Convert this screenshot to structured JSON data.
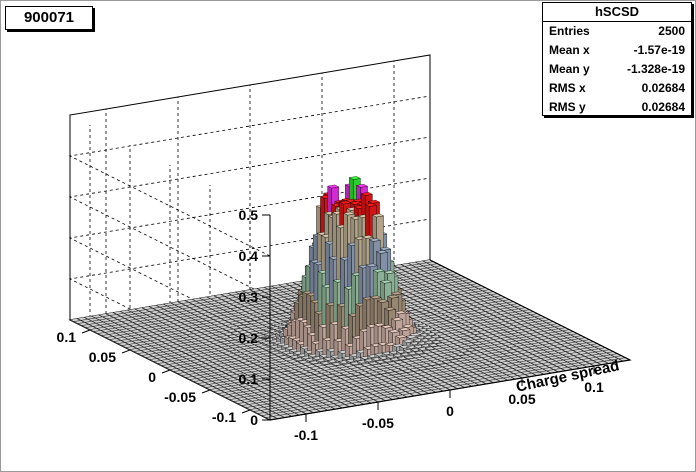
{
  "canvas": {
    "title": "900071"
  },
  "stats": {
    "name": "hSCSD",
    "rows": [
      {
        "label": "Entries",
        "value": "2500"
      },
      {
        "label": "Mean x",
        "value": "-1.57e-19"
      },
      {
        "label": "Mean y",
        "value": "-1.328e-19"
      },
      {
        "label": "RMS x",
        "value": "0.02684"
      },
      {
        "label": "RMS y",
        "value": "0.02684"
      }
    ]
  },
  "chart_data": {
    "type": "lego",
    "xlabel": "Charge spread",
    "ylabel": "",
    "zlabel": "",
    "xlim": [
      -0.125,
      0.125
    ],
    "ylim": [
      -0.125,
      0.125
    ],
    "zlim": [
      0,
      0.5
    ],
    "x_ticks": [
      "-0.1",
      "-0.05",
      "0",
      "0.05",
      "0.1"
    ],
    "y_ticks": [
      "-0.1",
      "-0.05",
      "0",
      "0.05",
      "0.1"
    ],
    "z_ticks": [
      "0",
      "0.1",
      "0.2",
      "0.3",
      "0.4",
      "0.5"
    ],
    "bins": 50,
    "grid": true,
    "peaks": [
      {
        "x": -0.01,
        "y": 0.01,
        "z": 0.42
      },
      {
        "x": 0.01,
        "y": 0.01,
        "z": 0.44
      },
      {
        "x": -0.01,
        "y": -0.01,
        "z": 0.38
      },
      {
        "x": 0.01,
        "y": -0.01,
        "z": 0.4
      }
    ],
    "colors": {
      "lowest": "#cfcfcf",
      "low": "#e6c7ba",
      "mid_low": "#b8a38a",
      "mid": "#a9d6b4",
      "mid_high": "#9fb0c9",
      "high": "#d8c8a8",
      "top_red": "#ff1a1a",
      "top_magenta": "#ff33ff",
      "top_green": "#33ff33",
      "top_black": "#000000"
    }
  }
}
